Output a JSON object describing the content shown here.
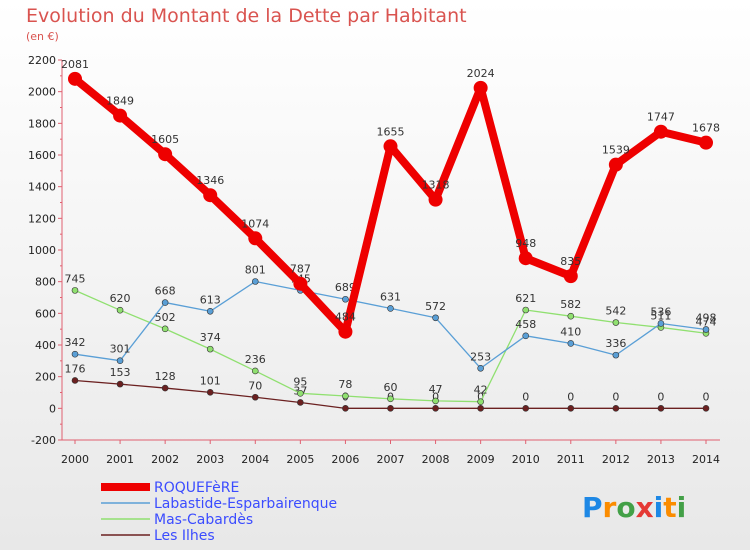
{
  "chart_data": {
    "type": "line",
    "title": "Evolution du Montant de la Dette par Habitant",
    "subtitle": "(en €)",
    "categories": [
      "2000",
      "2001",
      "2002",
      "2003",
      "2004",
      "2005",
      "2006",
      "2007",
      "2008",
      "2009",
      "2010",
      "2011",
      "2012",
      "2013",
      "2014"
    ],
    "ylim": [
      -200,
      2200
    ],
    "yticks": [
      -200,
      0,
      200,
      400,
      600,
      800,
      1000,
      1200,
      1400,
      1600,
      1800,
      2000,
      2200
    ],
    "grid": false,
    "legend_position": "bottom-left",
    "series": [
      {
        "name": "Les Ilhes",
        "color": "#6b2020",
        "values": [
          176,
          153,
          128,
          101,
          70,
          37,
          0,
          0,
          0,
          0,
          0,
          0,
          0,
          0,
          0
        ],
        "labels": [
          "176",
          "153",
          "128",
          "101",
          "70",
          "37",
          "0",
          "0",
          "0",
          "0",
          "0",
          "0",
          "0",
          "0",
          "0"
        ]
      },
      {
        "name": "Mas-Cabardès",
        "color": "#90e070",
        "values": [
          745,
          620,
          502,
          374,
          236,
          95,
          78,
          60,
          47,
          42,
          621,
          582,
          542,
          511,
          474
        ],
        "labels": [
          "745",
          "620",
          "502",
          "374",
          "236",
          "95",
          "78",
          "60",
          "47",
          "42",
          "621",
          "582",
          "542",
          "511",
          "474"
        ]
      },
      {
        "name": "Labastide-Esparbairenque",
        "color": "#5a9fd6",
        "values": [
          342,
          301,
          668,
          613,
          801,
          745,
          689,
          631,
          572,
          253,
          458,
          410,
          336,
          536,
          498
        ],
        "labels": [
          "342",
          "301",
          "668",
          "613",
          "801",
          "745",
          "689",
          "631",
          "572",
          "253",
          "458",
          "410",
          "336",
          "536",
          "498"
        ]
      },
      {
        "name": "ROQUEFèRE",
        "color": "#ee0000",
        "values": [
          2081,
          1849,
          1605,
          1346,
          1074,
          787,
          484,
          1655,
          1318,
          2024,
          948,
          835,
          1539,
          1747,
          1678
        ],
        "labels": [
          "2081",
          "1849",
          "1605",
          "1346",
          "1074",
          "787",
          "484",
          "1655",
          "1318",
          "2024",
          "948",
          "835",
          "1539",
          "1747",
          "1678"
        ]
      }
    ],
    "legend": [
      "ROQUEFèRE",
      "Labastide-Esparbairenque",
      "Mas-Cabardès",
      "Les Ilhes"
    ]
  },
  "logo": {
    "text": "Proxiti",
    "letters": [
      "P",
      "r",
      "o",
      "x",
      "i",
      "t",
      "i"
    ],
    "colors": [
      "#1e88e5",
      "#fb8c00",
      "#43a047",
      "#e53935",
      "#1e88e5",
      "#fb8c00",
      "#43a047"
    ]
  }
}
